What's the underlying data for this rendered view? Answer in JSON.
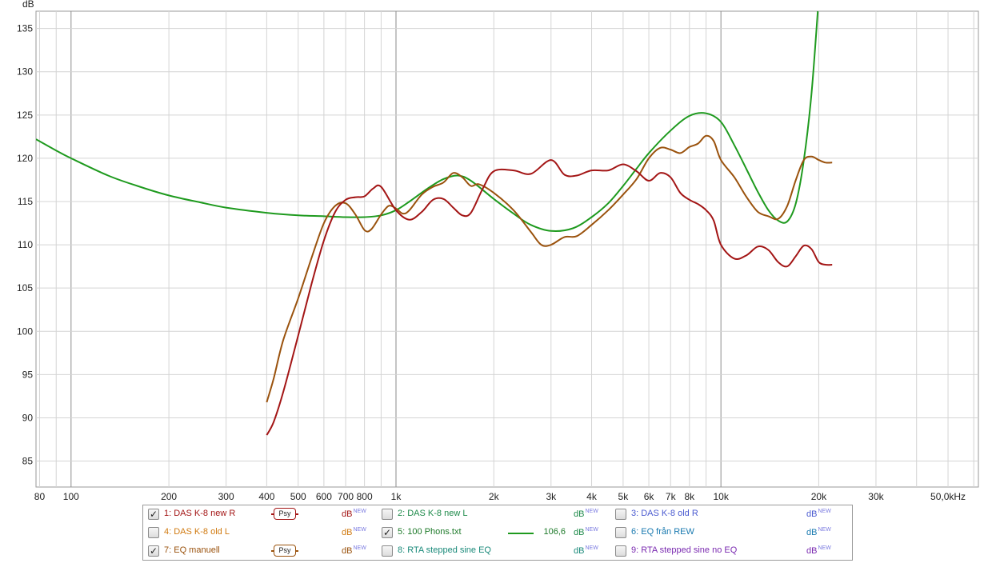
{
  "chart_data": {
    "type": "line",
    "xscale": "log",
    "xlim": [
      78,
      62000
    ],
    "ylim": [
      82,
      137
    ],
    "y_unit": "dB",
    "yticks": [
      85,
      90,
      95,
      100,
      105,
      110,
      115,
      120,
      125,
      130,
      135
    ],
    "xticks": [
      {
        "v": 80,
        "label": "80"
      },
      {
        "v": 100,
        "label": "100"
      },
      {
        "v": 200,
        "label": "200"
      },
      {
        "v": 300,
        "label": "300"
      },
      {
        "v": 400,
        "label": "400"
      },
      {
        "v": 500,
        "label": "500"
      },
      {
        "v": 600,
        "label": "600"
      },
      {
        "v": 700,
        "label": "700"
      },
      {
        "v": 800,
        "label": "800"
      },
      {
        "v": 1000,
        "label": "1k"
      },
      {
        "v": 2000,
        "label": "2k"
      },
      {
        "v": 3000,
        "label": "3k"
      },
      {
        "v": 4000,
        "label": "4k"
      },
      {
        "v": 5000,
        "label": "5k"
      },
      {
        "v": 6000,
        "label": "6k"
      },
      {
        "v": 7000,
        "label": "7k"
      },
      {
        "v": 8000,
        "label": "8k"
      },
      {
        "v": 10000,
        "label": "10k"
      },
      {
        "v": 20000,
        "label": "20k"
      },
      {
        "v": 30000,
        "label": "30k"
      },
      {
        "v": 50000,
        "label": "50,0kHz"
      }
    ],
    "grid": true,
    "series": [
      {
        "name": "5: 100 Phons.txt",
        "color": "#1e9a1e",
        "points": [
          [
            78,
            122.2
          ],
          [
            90,
            120.9
          ],
          [
            100,
            120.0
          ],
          [
            130,
            118.0
          ],
          [
            160,
            116.8
          ],
          [
            200,
            115.7
          ],
          [
            250,
            114.9
          ],
          [
            300,
            114.3
          ],
          [
            400,
            113.7
          ],
          [
            500,
            113.4
          ],
          [
            600,
            113.3
          ],
          [
            700,
            113.2
          ],
          [
            800,
            113.2
          ],
          [
            900,
            113.4
          ],
          [
            1000,
            114.0
          ],
          [
            1100,
            115.0
          ],
          [
            1250,
            116.5
          ],
          [
            1400,
            117.6
          ],
          [
            1550,
            118.0
          ],
          [
            1700,
            117.4
          ],
          [
            2000,
            115.3
          ],
          [
            2300,
            113.6
          ],
          [
            2600,
            112.3
          ],
          [
            3000,
            111.6
          ],
          [
            3500,
            111.9
          ],
          [
            4000,
            113.2
          ],
          [
            4500,
            114.8
          ],
          [
            5000,
            116.8
          ],
          [
            5500,
            118.8
          ],
          [
            6000,
            120.6
          ],
          [
            7000,
            123.2
          ],
          [
            8000,
            124.9
          ],
          [
            9000,
            125.2
          ],
          [
            10000,
            124.2
          ],
          [
            11000,
            121.5
          ],
          [
            12000,
            118.7
          ],
          [
            13000,
            116.1
          ],
          [
            14000,
            114.0
          ],
          [
            15000,
            112.8
          ],
          [
            16000,
            112.7
          ],
          [
            17000,
            114.8
          ],
          [
            18000,
            119.8
          ],
          [
            19000,
            127.5
          ],
          [
            20000,
            138.5
          ]
        ]
      },
      {
        "name": "7: EQ manuell",
        "color": "#9a520d",
        "points": [
          [
            400,
            91.8
          ],
          [
            420,
            94.5
          ],
          [
            450,
            99.0
          ],
          [
            500,
            103.8
          ],
          [
            550,
            108.5
          ],
          [
            600,
            112.5
          ],
          [
            650,
            114.5
          ],
          [
            700,
            114.8
          ],
          [
            750,
            113.5
          ],
          [
            800,
            111.7
          ],
          [
            840,
            111.8
          ],
          [
            900,
            113.5
          ],
          [
            950,
            114.5
          ],
          [
            1000,
            114.2
          ],
          [
            1050,
            113.6
          ],
          [
            1100,
            114.0
          ],
          [
            1200,
            115.8
          ],
          [
            1300,
            116.7
          ],
          [
            1400,
            117.2
          ],
          [
            1500,
            118.3
          ],
          [
            1600,
            117.8
          ],
          [
            1700,
            116.8
          ],
          [
            1800,
            117.0
          ],
          [
            2000,
            116.0
          ],
          [
            2300,
            114.0
          ],
          [
            2600,
            111.5
          ],
          [
            2800,
            110.0
          ],
          [
            3000,
            110.0
          ],
          [
            3300,
            110.9
          ],
          [
            3600,
            111.0
          ],
          [
            4000,
            112.3
          ],
          [
            4500,
            114.0
          ],
          [
            5000,
            115.8
          ],
          [
            5500,
            117.6
          ],
          [
            6000,
            120.0
          ],
          [
            6500,
            121.2
          ],
          [
            7000,
            121.0
          ],
          [
            7500,
            120.6
          ],
          [
            8000,
            121.3
          ],
          [
            8500,
            121.7
          ],
          [
            9000,
            122.6
          ],
          [
            9500,
            122.0
          ],
          [
            10000,
            119.8
          ],
          [
            11000,
            117.8
          ],
          [
            12000,
            115.5
          ],
          [
            13000,
            113.8
          ],
          [
            14000,
            113.3
          ],
          [
            15000,
            113.0
          ],
          [
            16000,
            114.5
          ],
          [
            17000,
            117.5
          ],
          [
            18000,
            119.8
          ],
          [
            19000,
            120.2
          ],
          [
            20000,
            119.8
          ],
          [
            21000,
            119.5
          ],
          [
            22000,
            119.5
          ]
        ]
      },
      {
        "name": "1: DAS K-8 new R",
        "color": "#a31515",
        "points": [
          [
            400,
            88.0
          ],
          [
            420,
            89.5
          ],
          [
            450,
            93.0
          ],
          [
            500,
            99.5
          ],
          [
            550,
            105.5
          ],
          [
            600,
            110.5
          ],
          [
            650,
            113.8
          ],
          [
            700,
            115.2
          ],
          [
            750,
            115.5
          ],
          [
            800,
            115.6
          ],
          [
            850,
            116.5
          ],
          [
            900,
            116.7
          ],
          [
            1000,
            114.0
          ],
          [
            1100,
            112.9
          ],
          [
            1200,
            113.8
          ],
          [
            1300,
            115.2
          ],
          [
            1400,
            115.3
          ],
          [
            1500,
            114.3
          ],
          [
            1600,
            113.4
          ],
          [
            1700,
            113.7
          ],
          [
            1850,
            116.5
          ],
          [
            2000,
            118.5
          ],
          [
            2300,
            118.6
          ],
          [
            2600,
            118.2
          ],
          [
            3000,
            119.8
          ],
          [
            3300,
            118.1
          ],
          [
            3600,
            118.0
          ],
          [
            4000,
            118.6
          ],
          [
            4500,
            118.6
          ],
          [
            5000,
            119.3
          ],
          [
            5500,
            118.5
          ],
          [
            6000,
            117.4
          ],
          [
            6500,
            118.3
          ],
          [
            7000,
            117.8
          ],
          [
            7500,
            116.0
          ],
          [
            8000,
            115.2
          ],
          [
            8500,
            114.7
          ],
          [
            9000,
            114.0
          ],
          [
            9500,
            112.8
          ],
          [
            10000,
            110.0
          ],
          [
            11000,
            108.4
          ],
          [
            12000,
            108.8
          ],
          [
            13000,
            109.8
          ],
          [
            14000,
            109.4
          ],
          [
            15000,
            108.0
          ],
          [
            16000,
            107.5
          ],
          [
            17000,
            108.7
          ],
          [
            18000,
            109.9
          ],
          [
            19000,
            109.5
          ],
          [
            20000,
            108.0
          ],
          [
            21000,
            107.7
          ],
          [
            22000,
            107.7
          ]
        ]
      }
    ]
  },
  "axis": {
    "y_unit_label": "dB"
  },
  "legend": {
    "rows": [
      [
        {
          "id": "1",
          "label": "1: DAS K-8 new R",
          "checked": true,
          "check_glyph": "✓",
          "color": "#a31515",
          "psy": "Psy",
          "value": "",
          "unit": "dB",
          "unit_sup": "NEW"
        },
        {
          "id": "2",
          "label": "2: DAS K-8 new L",
          "checked": false,
          "check_glyph": "",
          "color": "#1e8a4a",
          "psy": "",
          "value": "",
          "unit": "dB",
          "unit_sup": "NEW"
        },
        {
          "id": "3",
          "label": "3: DAS K-8 old R",
          "checked": false,
          "check_glyph": "",
          "color": "#4a5ad0",
          "psy": "",
          "value": "",
          "unit": "dB",
          "unit_sup": "NEW"
        }
      ],
      [
        {
          "id": "4",
          "label": "4: DAS K-8 old L",
          "checked": false,
          "check_glyph": "",
          "color": "#d07a10",
          "psy": "",
          "value": "",
          "unit": "dB",
          "unit_sup": "NEW"
        },
        {
          "id": "5",
          "label": "5: 100 Phons.txt",
          "checked": true,
          "check_glyph": "✓",
          "color": "#1e9a1e",
          "psy": "",
          "value": "106,6",
          "unit": "dB",
          "unit_sup": "NEW"
        },
        {
          "id": "6",
          "label": "6: EQ från REW",
          "checked": false,
          "check_glyph": "",
          "color": "#1a7ab0",
          "psy": "",
          "value": "",
          "unit": "dB",
          "unit_sup": "NEW"
        }
      ],
      [
        {
          "id": "7",
          "label": "7: EQ manuell",
          "checked": true,
          "check_glyph": "✓",
          "color": "#9a520d",
          "psy": "Psy",
          "value": "",
          "unit": "dB",
          "unit_sup": "NEW"
        },
        {
          "id": "8",
          "label": "8: RTA stepped sine EQ",
          "checked": false,
          "check_glyph": "",
          "color": "#1a8a7a",
          "psy": "",
          "value": "",
          "unit": "dB",
          "unit_sup": "NEW"
        },
        {
          "id": "9",
          "label": "9: RTA stepped sine no EQ",
          "checked": false,
          "check_glyph": "",
          "color": "#7a2ab0",
          "psy": "",
          "value": "",
          "unit": "dB",
          "unit_sup": "NEW"
        }
      ]
    ]
  }
}
